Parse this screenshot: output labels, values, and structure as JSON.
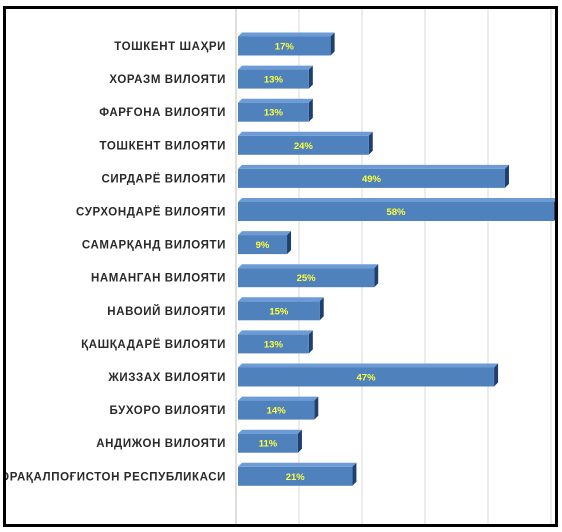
{
  "chart_data": {
    "type": "bar",
    "orientation": "horizontal",
    "categories": [
      "ТОШКЕНТ ШАҲРИ",
      "ХОРАЗМ ВИЛОЯТИ",
      "ФАРҒОНА ВИЛОЯТИ",
      "ТОШКЕНТ ВИЛОЯТИ",
      "СИРДАРЁ ВИЛОЯТИ",
      "СУРХОНДАРЁ ВИЛОЯТИ",
      "САМАРҚАНД ВИЛОЯТИ",
      "НАМАНГАН ВИЛОЯТИ",
      "НАВОИЙ ВИЛОЯТИ",
      "ҚАШҚАДАРЁ ВИЛОЯТИ",
      "ЖИЗЗАХ ВИЛОЯТИ",
      "БУХОРО ВИЛОЯТИ",
      "АНДИЖОН ВИЛОЯТИ",
      "ҚОРАҚАЛПОҒИСТОН РЕСПУБЛИКАСИ"
    ],
    "values": [
      17,
      13,
      13,
      24,
      49,
      58,
      9,
      25,
      15,
      13,
      47,
      14,
      11,
      21
    ],
    "value_labels": [
      "17%",
      "13%",
      "13%",
      "24%",
      "49%",
      "58%",
      "9%",
      "25%",
      "15%",
      "13%",
      "47%",
      "14%",
      "11%",
      "21%"
    ],
    "xlim": [
      0,
      58
    ],
    "grid": true,
    "colors": {
      "bar_front": "#4f81bd",
      "bar_top": "#6d9bd6",
      "bar_side": "#1f3f6e",
      "label_text": "#ffff3b",
      "gridline": "#d9d9d9",
      "axis": "#bfbfbf"
    }
  }
}
